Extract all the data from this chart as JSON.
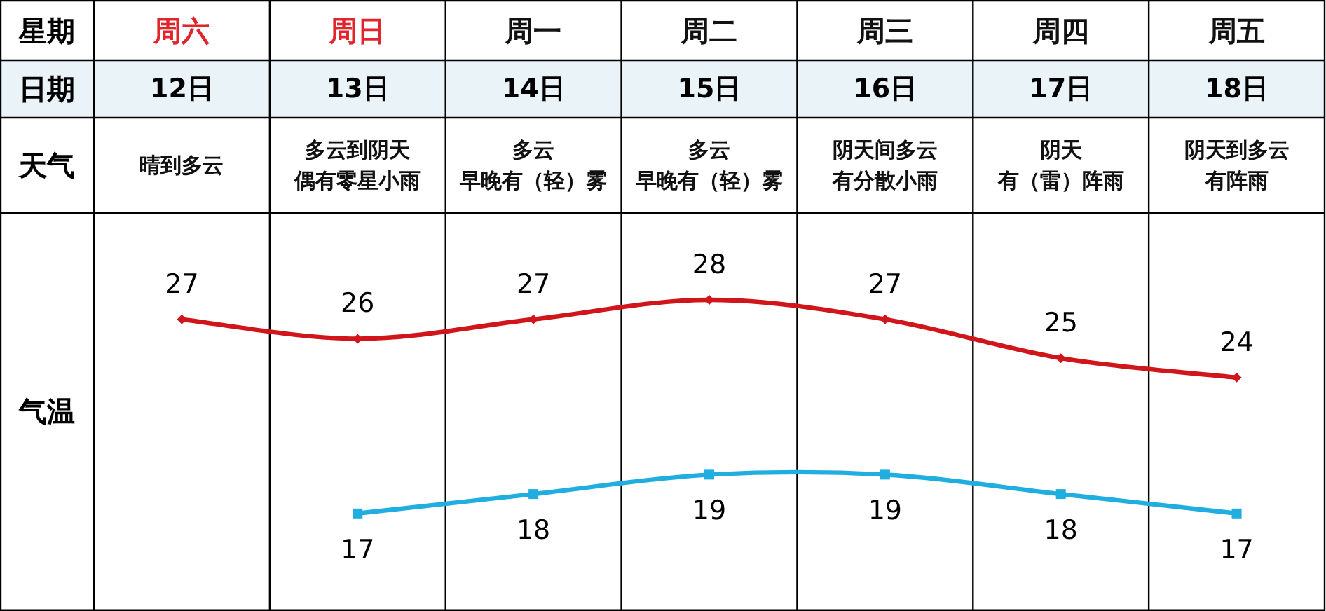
{
  "chart_data": [
    {
      "type": "other",
      "y_categories": [
        "星期",
        "天气",
        null
      ],
      "cell_labels": [
        [
          "周六",
          "周日",
          "周一",
          "周二",
          "周三",
          "周四",
          "周五"
        ],
        [
          "晴到多云",
          "多云到阴天",
          "多云",
          "多云",
          "阴天间多云",
          "阴天",
          "阴天到多云"
        ],
        [
          null,
          "偶有零星小雨",
          "早晚有（轻）雾",
          "早晚有（轻）雾",
          "有分散小雨",
          "有（雷）阵雨",
          "有阵雨"
        ]
      ]
    },
    {
      "type": "line",
      "categories": [
        "12日",
        "13日",
        "14日",
        "15日",
        "16日",
        "17日",
        "18日"
      ],
      "xlabel": "日期",
      "ylabel": "气温",
      "series": [
        {
          "color": "#d0161b",
          "marker": "diamond",
          "values": [
            27,
            26,
            27,
            28,
            27,
            25,
            24
          ]
        },
        {
          "color": "#20aee0",
          "marker": "square",
          "values": [
            null,
            17,
            18,
            19,
            19,
            18,
            17
          ]
        }
      ],
      "data_labels": true
    }
  ]
}
